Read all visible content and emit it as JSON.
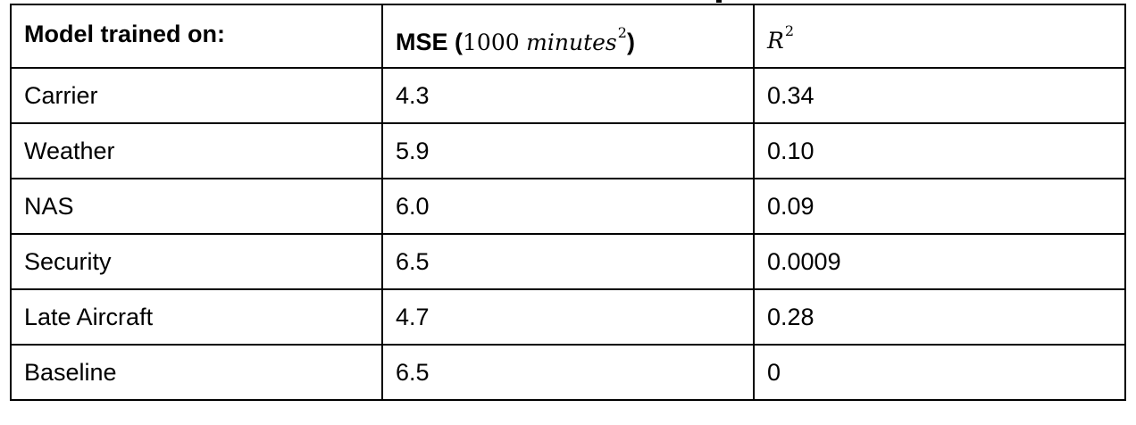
{
  "table": {
    "headers": {
      "model": "Model trained on:",
      "mse_label": "MSE",
      "mse_open": "(",
      "mse_number": "1000",
      "mse_unit": "minutes",
      "mse_exponent": "2",
      "mse_close": ")",
      "r2_symbol": "R",
      "r2_exponent": "2"
    },
    "rows": [
      {
        "model": "Carrier",
        "mse": "4.3",
        "r2": "0.34"
      },
      {
        "model": "Weather",
        "mse": "5.9",
        "r2": "0.10"
      },
      {
        "model": "NAS",
        "mse": "6.0",
        "r2": "0.09"
      },
      {
        "model": "Security",
        "mse": "6.5",
        "r2": "0.0009"
      },
      {
        "model": "Late Aircraft",
        "mse": "4.7",
        "r2": "0.28"
      },
      {
        "model": "Baseline",
        "mse": "6.5",
        "r2": "0"
      }
    ]
  }
}
